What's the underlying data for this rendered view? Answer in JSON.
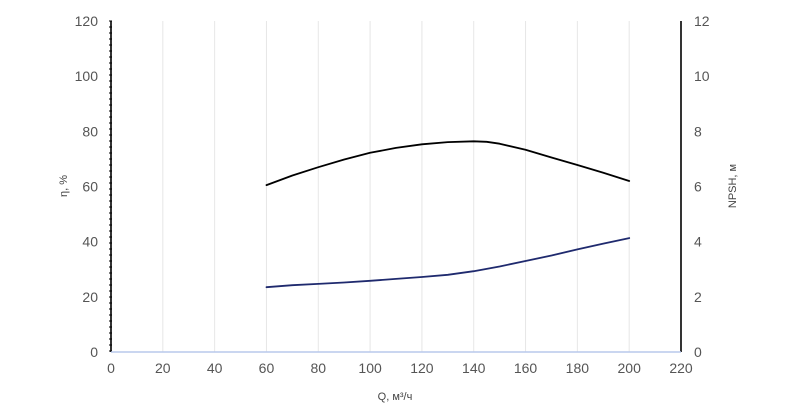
{
  "chart_data": {
    "type": "line",
    "title": "",
    "xlabel": "Q, м³/ч",
    "ylabel_left": "η, %",
    "ylabel_right": "NPSH, м",
    "xlim": [
      0,
      220
    ],
    "ylim_left": [
      0,
      120
    ],
    "ylim_right": [
      0,
      12
    ],
    "x_ticks": [
      "0",
      "20",
      "40",
      "60",
      "80",
      "100",
      "120",
      "140",
      "160",
      "180",
      "200",
      "220"
    ],
    "y_left_ticks": [
      "0",
      "20",
      "40",
      "60",
      "80",
      "100",
      "120"
    ],
    "y_right_ticks": [
      "0",
      "2",
      "4",
      "6",
      "8",
      "10",
      "12"
    ],
    "grid": "vertical",
    "legend": "none",
    "series": [
      {
        "axis": "left",
        "color": "#000000",
        "x": [
          60,
          70,
          80,
          90,
          100,
          110,
          120,
          130,
          140,
          145,
          150,
          160,
          170,
          180,
          190,
          200
        ],
        "y": [
          60.5,
          64,
          67,
          69.8,
          72.2,
          74,
          75.3,
          76.1,
          76.4,
          76.2,
          75.5,
          73.3,
          70.5,
          67.8,
          65,
          62
        ]
      },
      {
        "axis": "right",
        "color": "#1f2a6e",
        "x": [
          60,
          70,
          80,
          90,
          100,
          110,
          120,
          130,
          140,
          150,
          160,
          170,
          180,
          190,
          200
        ],
        "y": [
          2.35,
          2.42,
          2.47,
          2.52,
          2.58,
          2.65,
          2.72,
          2.8,
          2.93,
          3.1,
          3.3,
          3.5,
          3.72,
          3.93,
          4.13
        ]
      }
    ]
  }
}
